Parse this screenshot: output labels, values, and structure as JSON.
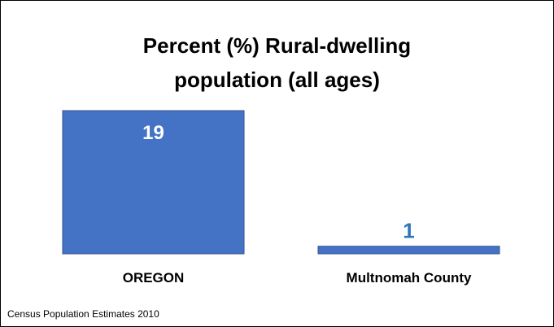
{
  "chart_data": {
    "type": "bar",
    "title": "Percent (%) Rural-dwelling\npopulation (all ages)",
    "categories": [
      "OREGON",
      "Multnomah County"
    ],
    "values": [
      19,
      1
    ],
    "ylim": [
      0,
      19
    ],
    "grid": false,
    "legend": "none",
    "colors": {
      "bar": "#4472C4",
      "bar_edge": "#2F528F",
      "label_inside": "#FFFFFF",
      "label_outside": "#2E75B6"
    }
  },
  "footer": {
    "source": "Census Population Estimates 2010"
  }
}
